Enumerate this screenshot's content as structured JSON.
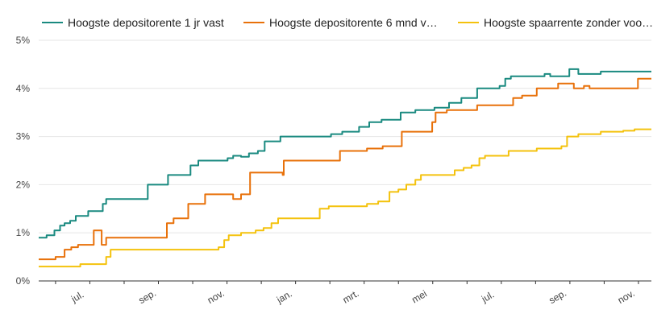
{
  "chart_data": {
    "type": "line",
    "title": "",
    "xlabel": "",
    "ylabel": "",
    "ylim": [
      0,
      5
    ],
    "yticks": [
      "0%",
      "1%",
      "2%",
      "3%",
      "4%",
      "5%"
    ],
    "xticks": [
      {
        "label": "jul.",
        "day": 36
      },
      {
        "label": "sep.",
        "day": 98
      },
      {
        "label": "nov.",
        "day": 159
      },
      {
        "label": "jan.",
        "day": 220
      },
      {
        "label": "mrt.",
        "day": 279
      },
      {
        "label": "mei",
        "day": 340
      },
      {
        "label": "jul.",
        "day": 401
      },
      {
        "label": "sep.",
        "day": 463
      },
      {
        "label": "nov.",
        "day": 524
      }
    ],
    "x_range_days": [
      0,
      545
    ],
    "grid": true,
    "legend_position": "top",
    "series": [
      {
        "name": "Hoogste depositorente 1 jr vast",
        "color": "#1a8a80",
        "points": [
          [
            0,
            0.9
          ],
          [
            7,
            0.95
          ],
          [
            14,
            1.05
          ],
          [
            19,
            1.15
          ],
          [
            23,
            1.2
          ],
          [
            28,
            1.25
          ],
          [
            33,
            1.35
          ],
          [
            44,
            1.45
          ],
          [
            57,
            1.6
          ],
          [
            60,
            1.7
          ],
          [
            97,
            2.0
          ],
          [
            115,
            2.2
          ],
          [
            135,
            2.4
          ],
          [
            142,
            2.5
          ],
          [
            168,
            2.55
          ],
          [
            173,
            2.6
          ],
          [
            180,
            2.58
          ],
          [
            187,
            2.65
          ],
          [
            195,
            2.7
          ],
          [
            201,
            2.9
          ],
          [
            215,
            3.0
          ],
          [
            260,
            3.05
          ],
          [
            270,
            3.1
          ],
          [
            285,
            3.2
          ],
          [
            294,
            3.3
          ],
          [
            305,
            3.35
          ],
          [
            322,
            3.5
          ],
          [
            335,
            3.55
          ],
          [
            352,
            3.6
          ],
          [
            365,
            3.7
          ],
          [
            376,
            3.8
          ],
          [
            390,
            4.0
          ],
          [
            410,
            4.05
          ],
          [
            415,
            4.2
          ],
          [
            420,
            4.25
          ],
          [
            450,
            4.3
          ],
          [
            455,
            4.25
          ],
          [
            472,
            4.4
          ],
          [
            480,
            4.3
          ],
          [
            500,
            4.35
          ],
          [
            545,
            4.35
          ]
        ]
      },
      {
        "name": "Hoogste depositorente 6 mnd v…",
        "color": "#e8710a",
        "points": [
          [
            0,
            0.45
          ],
          [
            15,
            0.5
          ],
          [
            23,
            0.65
          ],
          [
            29,
            0.7
          ],
          [
            35,
            0.75
          ],
          [
            49,
            1.05
          ],
          [
            56,
            0.75
          ],
          [
            60,
            0.9
          ],
          [
            114,
            1.2
          ],
          [
            120,
            1.3
          ],
          [
            133,
            1.6
          ],
          [
            148,
            1.8
          ],
          [
            173,
            1.7
          ],
          [
            180,
            1.8
          ],
          [
            188,
            2.25
          ],
          [
            217,
            2.2
          ],
          [
            218,
            2.5
          ],
          [
            268,
            2.7
          ],
          [
            292,
            2.75
          ],
          [
            306,
            2.8
          ],
          [
            323,
            3.1
          ],
          [
            350,
            3.3
          ],
          [
            353,
            3.5
          ],
          [
            363,
            3.55
          ],
          [
            390,
            3.65
          ],
          [
            422,
            3.8
          ],
          [
            430,
            3.85
          ],
          [
            443,
            4.0
          ],
          [
            462,
            4.1
          ],
          [
            476,
            4.0
          ],
          [
            485,
            4.05
          ],
          [
            490,
            4.0
          ],
          [
            533,
            4.2
          ],
          [
            545,
            4.2
          ]
        ]
      },
      {
        "name": "Hoogste spaarrente zonder voo…",
        "color": "#f4c20d",
        "points": [
          [
            0,
            0.3
          ],
          [
            37,
            0.35
          ],
          [
            60,
            0.5
          ],
          [
            64,
            0.65
          ],
          [
            160,
            0.7
          ],
          [
            165,
            0.85
          ],
          [
            169,
            0.95
          ],
          [
            180,
            1.0
          ],
          [
            193,
            1.05
          ],
          [
            200,
            1.1
          ],
          [
            207,
            1.2
          ],
          [
            213,
            1.3
          ],
          [
            250,
            1.5
          ],
          [
            258,
            1.55
          ],
          [
            292,
            1.6
          ],
          [
            302,
            1.65
          ],
          [
            312,
            1.85
          ],
          [
            320,
            1.9
          ],
          [
            327,
            2.0
          ],
          [
            335,
            2.1
          ],
          [
            340,
            2.2
          ],
          [
            370,
            2.3
          ],
          [
            378,
            2.35
          ],
          [
            385,
            2.4
          ],
          [
            392,
            2.55
          ],
          [
            397,
            2.6
          ],
          [
            418,
            2.7
          ],
          [
            443,
            2.75
          ],
          [
            465,
            2.8
          ],
          [
            470,
            3.0
          ],
          [
            480,
            3.05
          ],
          [
            500,
            3.1
          ],
          [
            520,
            3.12
          ],
          [
            530,
            3.15
          ],
          [
            545,
            3.15
          ]
        ]
      }
    ]
  }
}
